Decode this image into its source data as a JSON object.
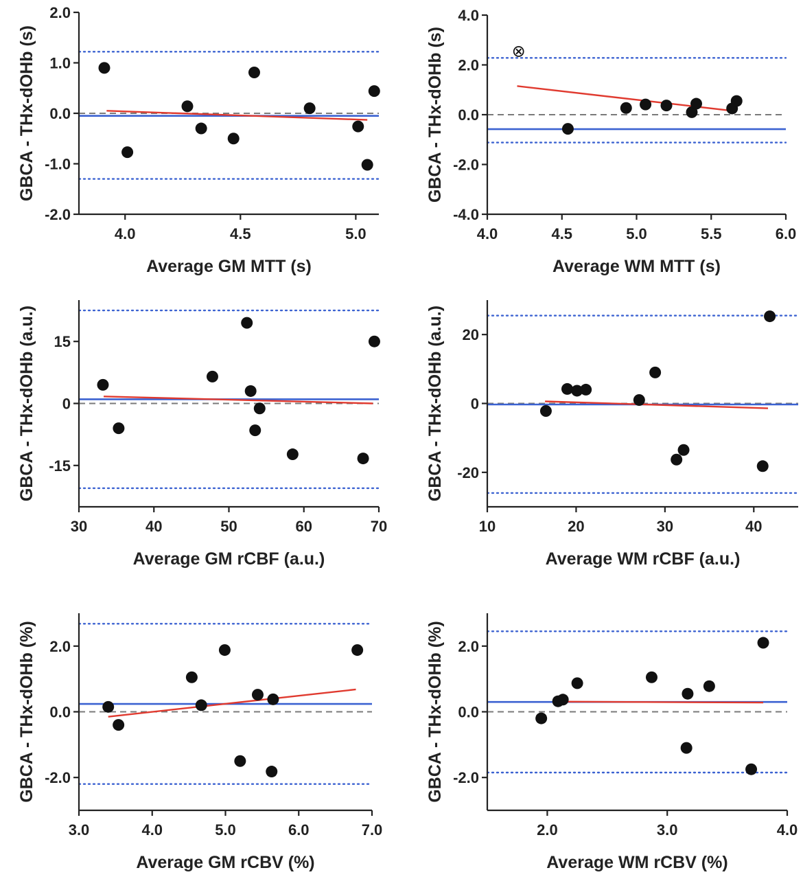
{
  "chart_data": [
    {
      "type": "scatter",
      "panel": "gm-mtt",
      "xlabel": "Average GM MTT (s)",
      "ylabel": "GBCA - THx-dOHb (s)",
      "xlim": [
        3.8,
        5.1
      ],
      "ylim": [
        -2.0,
        2.0
      ],
      "xticks": [
        4.0,
        4.5,
        5.0
      ],
      "xtick_labels": [
        "4.0",
        "4.5",
        "5.0"
      ],
      "yticks": [
        -2.0,
        -1.0,
        0.0,
        1.0,
        2.0
      ],
      "ytick_labels": [
        "-2.0",
        "-1.0",
        "0.0",
        "1.0",
        "2.0"
      ],
      "points": [
        {
          "x": 3.91,
          "y": 0.9
        },
        {
          "x": 4.01,
          "y": -0.77
        },
        {
          "x": 4.27,
          "y": 0.14
        },
        {
          "x": 4.33,
          "y": -0.3
        },
        {
          "x": 4.47,
          "y": -0.5
        },
        {
          "x": 4.56,
          "y": 0.81
        },
        {
          "x": 4.8,
          "y": 0.1
        },
        {
          "x": 5.01,
          "y": -0.26
        },
        {
          "x": 5.05,
          "y": -1.02
        },
        {
          "x": 5.08,
          "y": 0.44
        }
      ],
      "mean_bias": -0.05,
      "limits_of_agreement": [
        -1.3,
        1.22
      ],
      "zero_line": 0,
      "regression": {
        "x": [
          3.92,
          5.05
        ],
        "y": [
          0.05,
          -0.13
        ]
      }
    },
    {
      "type": "scatter",
      "panel": "wm-mtt",
      "xlabel": "Average WM MTT (s)",
      "ylabel": "GBCA - THx-dOHb (s)",
      "xlim": [
        4.0,
        6.0
      ],
      "ylim": [
        -4.0,
        4.0
      ],
      "xticks": [
        4.0,
        4.5,
        5.0,
        5.5,
        6.0
      ],
      "xtick_labels": [
        "4.0",
        "4.5",
        "5.0",
        "5.5",
        "6.0"
      ],
      "yticks": [
        -4.0,
        -2.0,
        0.0,
        2.0,
        4.0
      ],
      "ytick_labels": [
        "-4.0",
        "-2.0",
        "0.0",
        "2.0",
        "4.0"
      ],
      "points": [
        {
          "x": 4.54,
          "y": -0.57
        },
        {
          "x": 4.93,
          "y": 0.27
        },
        {
          "x": 5.06,
          "y": 0.41
        },
        {
          "x": 5.2,
          "y": 0.37
        },
        {
          "x": 5.37,
          "y": 0.1
        },
        {
          "x": 5.4,
          "y": 0.44
        },
        {
          "x": 5.64,
          "y": 0.25
        },
        {
          "x": 5.67,
          "y": 0.55
        }
      ],
      "outliers": [
        {
          "x": 4.21,
          "y": 2.58,
          "symbol": "⊗"
        }
      ],
      "mean_bias": -0.58,
      "limits_of_agreement": [
        -1.12,
        2.28
      ],
      "zero_line": 0,
      "regression": {
        "x": [
          4.2,
          5.65
        ],
        "y": [
          1.15,
          0.15
        ]
      }
    },
    {
      "type": "scatter",
      "panel": "gm-rcbf",
      "xlabel": "Average GM rCBF (a.u.)",
      "ylabel": "GBCA - THx-dOHb (a.u.)",
      "xlim": [
        30,
        70
      ],
      "ylim": [
        -25,
        25
      ],
      "xticks": [
        30,
        40,
        50,
        60,
        70
      ],
      "xtick_labels": [
        "30",
        "40",
        "50",
        "60",
        "70"
      ],
      "yticks": [
        -15,
        0,
        15
      ],
      "ytick_labels": [
        "-15",
        "0",
        "15"
      ],
      "points": [
        {
          "x": 33.2,
          "y": 4.5
        },
        {
          "x": 35.3,
          "y": -6.0
        },
        {
          "x": 47.8,
          "y": 6.5
        },
        {
          "x": 52.4,
          "y": 19.5
        },
        {
          "x": 52.9,
          "y": 3.0
        },
        {
          "x": 53.5,
          "y": -6.5
        },
        {
          "x": 54.1,
          "y": -1.2
        },
        {
          "x": 58.5,
          "y": -12.3
        },
        {
          "x": 67.9,
          "y": -13.3
        },
        {
          "x": 69.4,
          "y": 15.0
        }
      ],
      "mean_bias": 1.0,
      "limits_of_agreement": [
        -20.5,
        22.5
      ],
      "zero_line": 0,
      "regression": {
        "x": [
          33.3,
          69.2
        ],
        "y": [
          1.7,
          0.0
        ]
      }
    },
    {
      "type": "scatter",
      "panel": "wm-rcbf",
      "xlabel": "Average WM rCBF (a.u.)",
      "ylabel": "GBCA - THx-dOHb (a.u.)",
      "xlim": [
        10,
        45
      ],
      "ylim": [
        -30,
        30
      ],
      "xticks": [
        10,
        20,
        30,
        40
      ],
      "xtick_labels": [
        "10",
        "20",
        "30",
        "40"
      ],
      "yticks": [
        -20,
        0,
        20
      ],
      "ytick_labels": [
        "-20",
        "0",
        "20"
      ],
      "points": [
        {
          "x": 16.6,
          "y": -2.2
        },
        {
          "x": 19.0,
          "y": 4.2
        },
        {
          "x": 20.1,
          "y": 3.7
        },
        {
          "x": 21.1,
          "y": 4.0
        },
        {
          "x": 27.1,
          "y": 1.0
        },
        {
          "x": 28.9,
          "y": 9.0
        },
        {
          "x": 31.3,
          "y": -16.3
        },
        {
          "x": 32.1,
          "y": -13.5
        },
        {
          "x": 41.0,
          "y": -18.2
        },
        {
          "x": 41.8,
          "y": 25.3
        }
      ],
      "mean_bias": -0.3,
      "limits_of_agreement": [
        -26.0,
        25.5
      ],
      "zero_line": 0,
      "regression": {
        "x": [
          16.5,
          41.6
        ],
        "y": [
          0.6,
          -1.4
        ]
      }
    },
    {
      "type": "scatter",
      "panel": "gm-rcbv",
      "xlabel": "Average GM rCBV (%)",
      "ylabel": "GBCA - THx-dOHb (%)",
      "xlim": [
        3.0,
        7.0
      ],
      "ylim": [
        -3.0,
        3.0
      ],
      "xticks": [
        3.0,
        4.0,
        5.0,
        6.0,
        7.0
      ],
      "xtick_labels": [
        "3.0",
        "4.0",
        "5.0",
        "6.0",
        "7.0"
      ],
      "yticks": [
        -2.0,
        0.0,
        2.0
      ],
      "ytick_labels": [
        "-2.0",
        "0.0",
        "2.0"
      ],
      "points": [
        {
          "x": 3.4,
          "y": 0.15
        },
        {
          "x": 3.54,
          "y": -0.4
        },
        {
          "x": 4.54,
          "y": 1.05
        },
        {
          "x": 4.67,
          "y": 0.2
        },
        {
          "x": 4.99,
          "y": 1.88
        },
        {
          "x": 5.2,
          "y": -1.5
        },
        {
          "x": 5.44,
          "y": 0.52
        },
        {
          "x": 5.63,
          "y": -1.82
        },
        {
          "x": 5.65,
          "y": 0.38
        },
        {
          "x": 6.8,
          "y": 1.88
        }
      ],
      "mean_bias": 0.24,
      "limits_of_agreement": [
        -2.2,
        2.68
      ],
      "zero_line": 0,
      "regression": {
        "x": [
          3.4,
          6.78
        ],
        "y": [
          -0.15,
          0.68
        ]
      }
    },
    {
      "type": "scatter",
      "panel": "wm-rcbv",
      "xlabel": "Average WM rCBV (%)",
      "ylabel": "GBCA - THx-dOHb (%)",
      "xlim": [
        1.5,
        4.0
      ],
      "ylim": [
        -3.0,
        3.0
      ],
      "xticks": [
        2.0,
        3.0,
        4.0
      ],
      "xtick_labels": [
        "2.0",
        "3.0",
        "4.0"
      ],
      "yticks": [
        -2.0,
        0.0,
        2.0
      ],
      "ytick_labels": [
        "-2.0",
        "0.0",
        "2.0"
      ],
      "points": [
        {
          "x": 1.95,
          "y": -0.2
        },
        {
          "x": 2.09,
          "y": 0.32
        },
        {
          "x": 2.13,
          "y": 0.37
        },
        {
          "x": 2.25,
          "y": 0.87
        },
        {
          "x": 2.87,
          "y": 1.05
        },
        {
          "x": 3.16,
          "y": -1.1
        },
        {
          "x": 3.17,
          "y": 0.55
        },
        {
          "x": 3.35,
          "y": 0.78
        },
        {
          "x": 3.7,
          "y": -1.75
        },
        {
          "x": 3.8,
          "y": 2.1
        }
      ],
      "mean_bias": 0.3,
      "limits_of_agreement": [
        -1.85,
        2.45
      ],
      "zero_line": 0,
      "regression": {
        "x": [
          2.08,
          3.8
        ],
        "y": [
          0.31,
          0.28
        ]
      }
    }
  ],
  "colors": {
    "axis": "#222222",
    "point": "#111111",
    "mean_line": "#3b62d1",
    "limit_line": "#3b62d1",
    "zero_line": "#7a7a7a",
    "regression": "#e03a2f"
  }
}
